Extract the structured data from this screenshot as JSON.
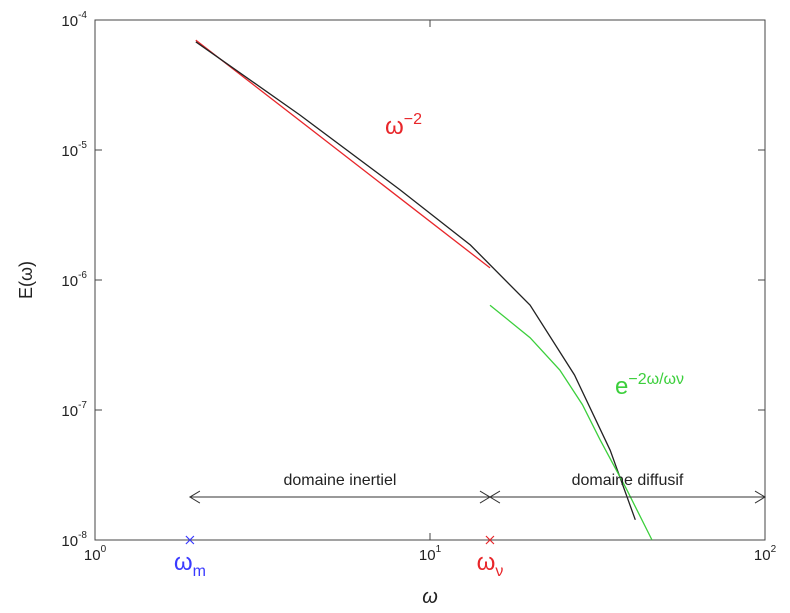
{
  "chart_data": {
    "type": "line",
    "xlabel": "ω",
    "ylabel": "E(ω)",
    "xscale": "log",
    "yscale": "log",
    "xlim": [
      1,
      100
    ],
    "ylim": [
      1e-08,
      0.0001
    ],
    "xticks": [
      {
        "value": 1,
        "label": "10",
        "exponent": "0"
      },
      {
        "value": 10,
        "label": "10",
        "exponent": "1"
      },
      {
        "value": 100,
        "label": "10",
        "exponent": "2"
      }
    ],
    "yticks": [
      {
        "value": 1e-08,
        "label": "10",
        "exponent": "-8"
      },
      {
        "value": 1e-07,
        "label": "10",
        "exponent": "-7"
      },
      {
        "value": 1e-06,
        "label": "10",
        "exponent": "-6"
      },
      {
        "value": 1e-05,
        "label": "10",
        "exponent": "-5"
      },
      {
        "value": 0.0001,
        "label": "10",
        "exponent": "-4"
      }
    ],
    "series": [
      {
        "color": "#e8262a",
        "x": [
          2.0,
          15.1
        ],
        "values": [
          7e-05,
          1.24e-06
        ]
      },
      {
        "color": "#222222",
        "x": [
          2.0,
          4.09,
          8.14,
          13.2,
          19.9,
          27.0,
          34.5,
          41
        ],
        "values": [
          6.8e-05,
          1.86e-05,
          4.93e-06,
          1.86e-06,
          6.4e-07,
          1.86e-07,
          4.9e-08,
          1.43e-08
        ]
      },
      {
        "color": "#3ccf3c",
        "x": [
          15.1,
          19.9,
          24.4,
          28.5,
          32.2,
          38.5,
          46
        ],
        "values": [
          6.4e-07,
          3.6e-07,
          2.03e-07,
          1.1e-07,
          5.9e-08,
          2.5e-08,
          1e-08
        ]
      }
    ],
    "annotations": [
      {
        "text": "ω",
        "sup": "−2",
        "color": "#e8262a"
      },
      {
        "text": "e",
        "sup": "−2ω/ων",
        "color": "#3ccf3c"
      }
    ],
    "markers": [
      {
        "x": 1.92,
        "y": 1e-08,
        "color": "#3a3aff",
        "label": "ω",
        "label_sub": "m"
      },
      {
        "x": 15.1,
        "y": 1e-08,
        "color": "#e8262a",
        "label": "ω",
        "label_sub": "ν"
      }
    ],
    "ranges": [
      {
        "label": "domaine inertiel",
        "x": [
          1.92,
          15.1
        ],
        "y": 2.14e-08
      },
      {
        "label": "domaine diffusif",
        "x": [
          15.1,
          100
        ],
        "y": 2.14e-08
      }
    ]
  }
}
